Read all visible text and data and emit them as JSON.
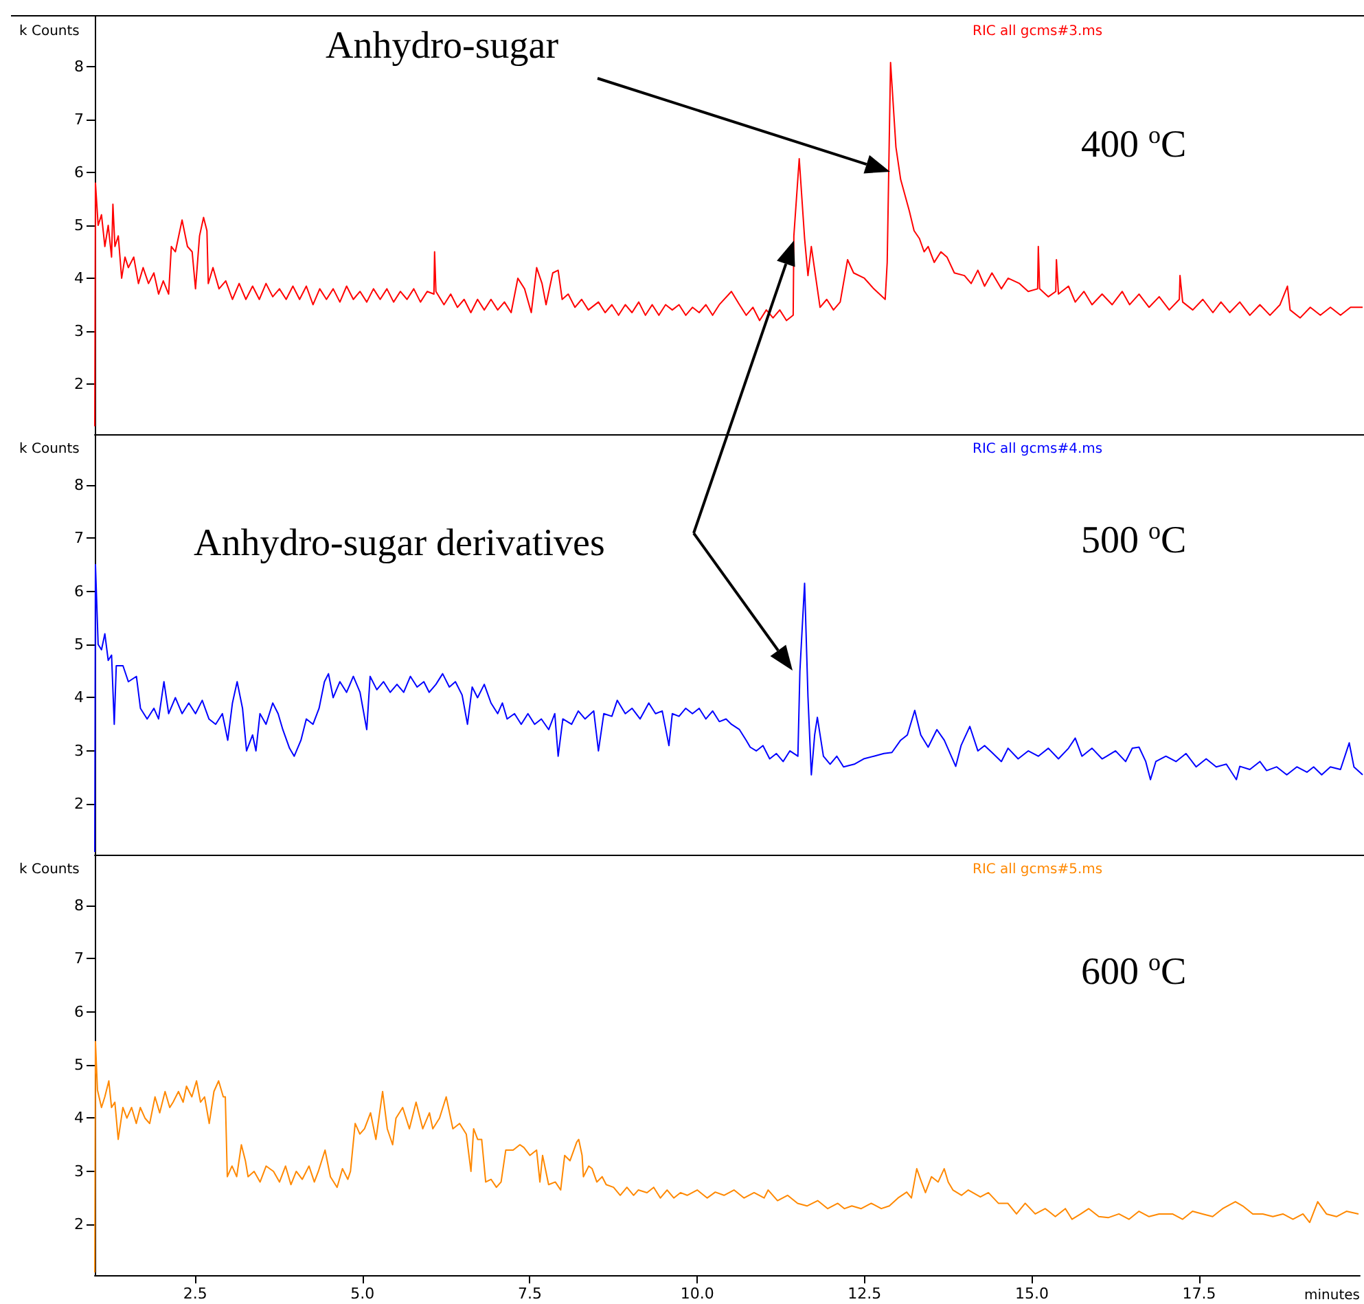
{
  "chart_data": [
    {
      "type": "line",
      "ylabel": "k Counts",
      "xlim": [
        1,
        19.9
      ],
      "ylim": [
        1.05,
        8.95
      ],
      "yticks": [
        2,
        3,
        4,
        5,
        6,
        7,
        8
      ],
      "tick_labels": "y",
      "annotations": [
        "Anhydro-sugar",
        "400 $^{o}$C"
      ],
      "series": [
        {
          "name": "RIC all gcms#3.ms",
          "color": "#ff0000",
          "x": [
            1.0,
            1.01,
            1.05,
            1.1,
            1.15,
            1.2,
            1.25,
            1.27,
            1.3,
            1.35,
            1.4,
            1.45,
            1.5,
            1.58,
            1.65,
            1.72,
            1.8,
            1.88,
            1.95,
            2.02,
            2.1,
            2.14,
            2.2,
            2.3,
            2.38,
            2.45,
            2.5,
            2.56,
            2.62,
            2.67,
            2.69,
            2.76,
            2.85,
            2.95,
            3.05,
            3.15,
            3.25,
            3.35,
            3.45,
            3.55,
            3.65,
            3.75,
            3.85,
            3.95,
            4.05,
            4.15,
            4.25,
            4.35,
            4.45,
            4.55,
            4.65,
            4.75,
            4.85,
            4.95,
            5.05,
            5.15,
            5.25,
            5.35,
            5.45,
            5.55,
            5.65,
            5.75,
            5.85,
            5.95,
            6.05,
            6.06,
            6.08,
            6.2,
            6.3,
            6.4,
            6.5,
            6.6,
            6.7,
            6.8,
            6.9,
            7.0,
            7.1,
            7.2,
            7.3,
            7.4,
            7.5,
            7.58,
            7.66,
            7.72,
            7.82,
            7.9,
            7.96,
            8.05,
            8.15,
            8.25,
            8.35,
            8.5,
            8.6,
            8.7,
            8.8,
            8.9,
            9.0,
            9.1,
            9.2,
            9.3,
            9.4,
            9.5,
            9.6,
            9.7,
            9.8,
            9.9,
            10.0,
            10.1,
            10.2,
            10.3,
            10.48,
            10.6,
            10.7,
            10.8,
            10.9,
            11.0,
            11.1,
            11.2,
            11.3,
            11.4,
            11.41,
            11.49,
            11.57,
            11.62,
            11.67,
            11.8,
            11.9,
            12.0,
            12.1,
            12.21,
            12.3,
            12.46,
            12.6,
            12.77,
            12.8,
            12.85,
            12.93,
            13.0,
            13.13,
            13.2,
            13.28,
            13.35,
            13.41,
            13.5,
            13.6,
            13.69,
            13.8,
            13.95,
            14.05,
            14.15,
            14.25,
            14.36,
            14.5,
            14.6,
            14.77,
            14.9,
            15.04,
            15.05,
            15.07,
            15.2,
            15.31,
            15.32,
            15.35,
            15.5,
            15.6,
            15.73,
            15.85,
            16.0,
            16.15,
            16.3,
            16.41,
            16.55,
            16.7,
            16.85,
            17.0,
            17.15,
            17.16,
            17.2,
            17.35,
            17.5,
            17.65,
            17.77,
            17.9,
            18.05,
            18.2,
            18.35,
            18.5,
            18.65,
            18.76,
            18.8,
            18.95,
            19.1,
            19.25,
            19.4,
            19.55,
            19.7,
            19.88
          ],
          "values": [
            1.2,
            5.8,
            5.0,
            5.2,
            4.6,
            5.0,
            4.4,
            5.4,
            4.6,
            4.8,
            4.0,
            4.4,
            4.2,
            4.4,
            3.9,
            4.2,
            3.9,
            4.1,
            3.7,
            3.95,
            3.7,
            4.6,
            4.5,
            5.1,
            4.6,
            4.5,
            3.8,
            4.8,
            5.15,
            4.9,
            3.9,
            4.2,
            3.8,
            3.95,
            3.6,
            3.9,
            3.6,
            3.85,
            3.6,
            3.9,
            3.65,
            3.8,
            3.6,
            3.85,
            3.6,
            3.85,
            3.5,
            3.8,
            3.6,
            3.8,
            3.55,
            3.85,
            3.6,
            3.75,
            3.55,
            3.8,
            3.6,
            3.8,
            3.55,
            3.75,
            3.6,
            3.8,
            3.55,
            3.75,
            3.7,
            4.5,
            3.75,
            3.5,
            3.7,
            3.45,
            3.6,
            3.35,
            3.6,
            3.4,
            3.6,
            3.4,
            3.55,
            3.35,
            4.0,
            3.8,
            3.35,
            4.2,
            3.9,
            3.5,
            4.1,
            4.15,
            3.6,
            3.7,
            3.45,
            3.6,
            3.4,
            3.55,
            3.35,
            3.5,
            3.3,
            3.5,
            3.35,
            3.55,
            3.3,
            3.5,
            3.3,
            3.5,
            3.4,
            3.5,
            3.3,
            3.45,
            3.35,
            3.5,
            3.3,
            3.5,
            3.75,
            3.5,
            3.3,
            3.45,
            3.2,
            3.4,
            3.25,
            3.4,
            3.2,
            3.3,
            4.8,
            6.26,
            4.75,
            4.05,
            4.6,
            3.45,
            3.6,
            3.4,
            3.55,
            4.35,
            4.1,
            4.0,
            3.8,
            3.6,
            4.3,
            8.08,
            6.48,
            5.87,
            5.27,
            4.9,
            4.75,
            4.5,
            4.6,
            4.3,
            4.5,
            4.4,
            4.1,
            4.05,
            3.9,
            4.15,
            3.85,
            4.1,
            3.8,
            4.0,
            3.9,
            3.75,
            3.8,
            4.6,
            3.8,
            3.65,
            3.75,
            4.35,
            3.7,
            3.85,
            3.55,
            3.75,
            3.5,
            3.7,
            3.5,
            3.75,
            3.5,
            3.7,
            3.45,
            3.65,
            3.4,
            3.6,
            4.05,
            3.55,
            3.4,
            3.6,
            3.35,
            3.55,
            3.35,
            3.55,
            3.3,
            3.5,
            3.3,
            3.5,
            3.85,
            3.4,
            3.25,
            3.45,
            3.3,
            3.45,
            3.3,
            3.45,
            3.45
          ]
        }
      ]
    },
    {
      "type": "line",
      "ylabel": "k Counts",
      "xlim": [
        1,
        19.9
      ],
      "ylim": [
        1.05,
        8.95
      ],
      "yticks": [
        2,
        3,
        4,
        5,
        6,
        7,
        8
      ],
      "tick_labels": "y",
      "annotations": [
        "Anhydro-sugar derivatives",
        "500 $^{o}$C"
      ],
      "series": [
        {
          "name": "RIC all gcms#4.ms",
          "color": "#0000ff",
          "x": [
            1.0,
            1.01,
            1.05,
            1.1,
            1.15,
            1.2,
            1.25,
            1.29,
            1.32,
            1.42,
            1.5,
            1.62,
            1.68,
            1.78,
            1.88,
            1.95,
            2.03,
            2.1,
            2.2,
            2.3,
            2.4,
            2.5,
            2.6,
            2.7,
            2.8,
            2.9,
            2.98,
            3.05,
            3.12,
            3.2,
            3.26,
            3.35,
            3.4,
            3.46,
            3.55,
            3.65,
            3.73,
            3.8,
            3.9,
            3.97,
            4.07,
            4.15,
            4.25,
            4.34,
            4.42,
            4.48,
            4.55,
            4.65,
            4.75,
            4.85,
            4.95,
            5.05,
            5.1,
            5.2,
            5.3,
            5.4,
            5.5,
            5.6,
            5.7,
            5.8,
            5.9,
            5.98,
            6.08,
            6.18,
            6.28,
            6.37,
            6.47,
            6.55,
            6.62,
            6.7,
            6.8,
            6.9,
            7.0,
            7.07,
            7.14,
            7.25,
            7.35,
            7.45,
            7.55,
            7.65,
            7.76,
            7.85,
            7.9,
            7.97,
            8.1,
            8.2,
            8.3,
            8.43,
            8.5,
            8.58,
            8.7,
            8.78,
            8.9,
            9.0,
            9.12,
            9.25,
            9.35,
            9.45,
            9.55,
            9.6,
            9.7,
            9.8,
            9.9,
            10.0,
            10.1,
            10.2,
            10.3,
            10.4,
            10.48,
            10.6,
            10.7,
            10.76,
            10.85,
            10.95,
            11.05,
            11.15,
            11.25,
            11.35,
            11.47,
            11.5,
            11.57,
            11.62,
            11.67,
            11.72,
            11.76,
            11.85,
            11.95,
            12.05,
            12.15,
            12.31,
            12.45,
            12.6,
            12.75,
            12.87,
            13.0,
            13.1,
            13.21,
            13.3,
            13.41,
            13.54,
            13.65,
            13.82,
            13.9,
            14.03,
            14.15,
            14.25,
            14.36,
            14.5,
            14.6,
            14.75,
            14.9,
            15.05,
            15.2,
            15.35,
            15.5,
            15.6,
            15.7,
            15.85,
            16.0,
            16.07,
            16.2,
            16.35,
            16.45,
            16.55,
            16.65,
            16.72,
            16.8,
            16.95,
            17.1,
            17.25,
            17.4,
            17.55,
            17.7,
            17.85,
            18.0,
            18.05,
            18.2,
            18.35,
            18.45,
            18.6,
            18.75,
            18.9,
            19.05,
            19.15,
            19.27,
            19.4,
            19.55,
            19.68,
            19.75,
            19.88
          ],
          "values": [
            1.1,
            6.5,
            5.0,
            4.9,
            5.2,
            4.7,
            4.8,
            3.5,
            4.6,
            4.6,
            4.3,
            4.4,
            3.8,
            3.6,
            3.8,
            3.6,
            4.3,
            3.7,
            4.0,
            3.7,
            3.9,
            3.7,
            3.95,
            3.6,
            3.5,
            3.7,
            3.2,
            3.9,
            4.3,
            3.8,
            3.0,
            3.3,
            3.0,
            3.7,
            3.5,
            3.9,
            3.7,
            3.4,
            3.05,
            2.9,
            3.2,
            3.6,
            3.5,
            3.8,
            4.3,
            4.45,
            4.0,
            4.3,
            4.1,
            4.4,
            4.1,
            3.4,
            4.4,
            4.15,
            4.3,
            4.1,
            4.25,
            4.1,
            4.4,
            4.2,
            4.3,
            4.1,
            4.25,
            4.45,
            4.2,
            4.3,
            4.05,
            3.5,
            4.2,
            4.0,
            4.25,
            3.9,
            3.7,
            3.9,
            3.6,
            3.7,
            3.5,
            3.7,
            3.5,
            3.6,
            3.4,
            3.7,
            2.9,
            3.6,
            3.5,
            3.75,
            3.6,
            3.75,
            3.0,
            3.7,
            3.65,
            3.95,
            3.7,
            3.8,
            3.6,
            3.9,
            3.7,
            3.75,
            3.1,
            3.7,
            3.65,
            3.8,
            3.7,
            3.8,
            3.6,
            3.75,
            3.55,
            3.6,
            3.5,
            3.4,
            3.2,
            3.07,
            3.0,
            3.1,
            2.85,
            2.95,
            2.8,
            3.0,
            2.9,
            4.5,
            6.15,
            4.02,
            2.55,
            3.3,
            3.63,
            2.9,
            2.75,
            2.9,
            2.7,
            2.75,
            2.85,
            2.9,
            2.95,
            2.97,
            3.2,
            3.3,
            3.76,
            3.3,
            3.07,
            3.4,
            3.2,
            2.71,
            3.1,
            3.46,
            3.0,
            3.1,
            2.97,
            2.8,
            3.05,
            2.85,
            3.0,
            2.9,
            3.05,
            2.85,
            3.05,
            3.24,
            2.9,
            3.05,
            2.85,
            2.9,
            3.0,
            2.8,
            3.05,
            3.07,
            2.8,
            2.46,
            2.8,
            2.9,
            2.8,
            2.95,
            2.7,
            2.85,
            2.7,
            2.75,
            2.46,
            2.71,
            2.65,
            2.8,
            2.63,
            2.7,
            2.55,
            2.7,
            2.6,
            2.7,
            2.55,
            2.7,
            2.65,
            3.15,
            2.7,
            2.55
          ]
        }
      ]
    },
    {
      "type": "line",
      "ylabel": "k Counts",
      "xlabel": "minutes",
      "xlim": [
        1,
        19.9
      ],
      "xticks": [
        2.5,
        {
          "value": 5,
          "label": "5.0"
        },
        7.5,
        {
          "value": 10,
          "label": "10.0"
        },
        12.5,
        {
          "value": 15,
          "label": "15.0"
        },
        17.5
      ],
      "ylim": [
        1.05,
        8.95
      ],
      "yticks": [
        2,
        3,
        4,
        5,
        6,
        7,
        8
      ],
      "annotations": [
        "600 $^{o}$C"
      ],
      "series": [
        {
          "name": "RIC all gcms#5.ms",
          "color": "#ff8800",
          "x": [
            1.0,
            1.01,
            1.04,
            1.1,
            1.15,
            1.21,
            1.25,
            1.3,
            1.35,
            1.42,
            1.48,
            1.55,
            1.62,
            1.68,
            1.75,
            1.82,
            1.9,
            1.97,
            2.05,
            2.12,
            2.17,
            2.25,
            2.32,
            2.37,
            2.45,
            2.52,
            2.58,
            2.64,
            2.71,
            2.78,
            2.85,
            2.92,
            2.95,
            2.98,
            3.05,
            3.12,
            3.19,
            3.25,
            3.29,
            3.38,
            3.47,
            3.56,
            3.67,
            3.76,
            3.85,
            3.93,
            4.01,
            4.1,
            4.2,
            4.28,
            4.34,
            4.44,
            4.52,
            4.62,
            4.7,
            4.78,
            4.82,
            4.89,
            4.96,
            5.03,
            5.12,
            5.2,
            5.3,
            5.37,
            5.45,
            5.5,
            5.6,
            5.7,
            5.8,
            5.9,
            6.0,
            6.05,
            6.15,
            6.25,
            6.35,
            6.45,
            6.55,
            6.62,
            6.66,
            6.72,
            6.78,
            6.84,
            6.92,
            7.0,
            7.07,
            7.14,
            7.25,
            7.35,
            7.41,
            7.5,
            7.6,
            7.65,
            7.69,
            7.78,
            7.88,
            7.96,
            8.02,
            8.1,
            8.2,
            8.23,
            8.28,
            8.3,
            8.38,
            8.43,
            8.5,
            8.58,
            8.64,
            8.75,
            8.85,
            8.95,
            9.05,
            9.12,
            9.25,
            9.35,
            9.45,
            9.55,
            9.65,
            9.75,
            9.85,
            10.0,
            10.15,
            10.27,
            10.4,
            10.55,
            10.7,
            10.85,
            11.0,
            11.06,
            11.2,
            11.35,
            11.5,
            11.64,
            11.8,
            11.95,
            12.1,
            12.2,
            12.31,
            12.45,
            12.6,
            12.75,
            12.87,
            13.0,
            13.13,
            13.2,
            13.28,
            13.35,
            13.41,
            13.5,
            13.6,
            13.69,
            13.75,
            13.82,
            13.95,
            14.05,
            14.23,
            14.35,
            14.5,
            14.64,
            14.77,
            14.9,
            15.05,
            15.2,
            15.35,
            15.5,
            15.6,
            15.73,
            15.85,
            16.0,
            16.14,
            16.3,
            16.45,
            16.6,
            16.75,
            16.9,
            17.1,
            17.25,
            17.4,
            17.55,
            17.7,
            17.85,
            18.04,
            18.15,
            18.3,
            18.45,
            18.6,
            18.75,
            18.9,
            19.05,
            19.15,
            19.27,
            19.4,
            19.55,
            19.7,
            19.88
          ],
          "values": [
            1.1,
            5.44,
            4.53,
            4.2,
            4.4,
            4.7,
            4.2,
            4.3,
            3.6,
            4.2,
            4.0,
            4.2,
            3.9,
            4.2,
            4.0,
            3.9,
            4.4,
            4.1,
            4.5,
            4.2,
            4.3,
            4.5,
            4.3,
            4.6,
            4.4,
            4.7,
            4.3,
            4.4,
            3.9,
            4.5,
            4.7,
            4.4,
            4.4,
            2.9,
            3.1,
            2.9,
            3.5,
            3.2,
            2.9,
            3.0,
            2.8,
            3.1,
            3.0,
            2.8,
            3.1,
            2.75,
            3.0,
            2.85,
            3.1,
            2.8,
            3.0,
            3.4,
            2.9,
            2.7,
            3.05,
            2.85,
            3.0,
            3.9,
            3.7,
            3.8,
            4.1,
            3.6,
            4.5,
            3.8,
            3.5,
            4.0,
            4.2,
            3.8,
            4.3,
            3.8,
            4.1,
            3.8,
            4.0,
            4.4,
            3.8,
            3.9,
            3.7,
            3.0,
            3.8,
            3.6,
            3.6,
            2.8,
            2.85,
            2.7,
            2.8,
            3.4,
            3.4,
            3.5,
            3.45,
            3.3,
            3.4,
            2.8,
            3.3,
            2.75,
            2.8,
            2.65,
            3.3,
            3.2,
            3.55,
            3.6,
            3.3,
            2.9,
            3.1,
            3.05,
            2.8,
            2.9,
            2.75,
            2.7,
            2.55,
            2.7,
            2.55,
            2.65,
            2.6,
            2.7,
            2.5,
            2.65,
            2.5,
            2.6,
            2.55,
            2.65,
            2.5,
            2.61,
            2.55,
            2.65,
            2.5,
            2.6,
            2.5,
            2.65,
            2.45,
            2.55,
            2.4,
            2.35,
            2.45,
            2.3,
            2.4,
            2.3,
            2.35,
            2.3,
            2.4,
            2.3,
            2.35,
            2.5,
            2.61,
            2.5,
            3.05,
            2.8,
            2.6,
            2.9,
            2.8,
            3.05,
            2.8,
            2.65,
            2.55,
            2.65,
            2.52,
            2.6,
            2.4,
            2.4,
            2.2,
            2.4,
            2.2,
            2.3,
            2.15,
            2.3,
            2.1,
            2.2,
            2.3,
            2.15,
            2.13,
            2.2,
            2.1,
            2.25,
            2.15,
            2.2,
            2.2,
            2.1,
            2.25,
            2.2,
            2.15,
            2.3,
            2.43,
            2.35,
            2.2,
            2.2,
            2.15,
            2.2,
            2.1,
            2.2,
            2.04,
            2.43,
            2.2,
            2.15,
            2.25,
            2.2
          ]
        }
      ]
    }
  ]
}
